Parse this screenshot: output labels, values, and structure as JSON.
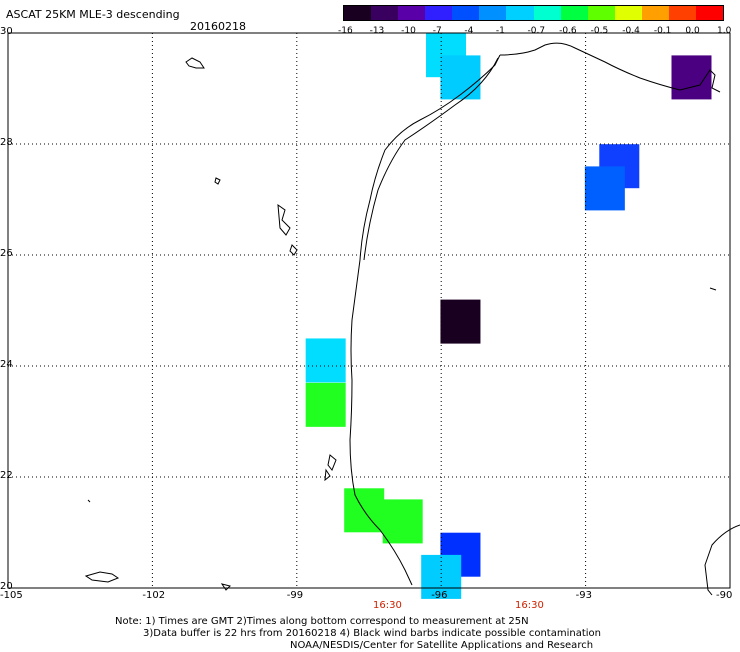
{
  "header": {
    "title": "ASCAT 25KM MLE-3 descending",
    "date": "20160218"
  },
  "colorbar": {
    "labels": [
      "-16",
      "-13",
      "-10",
      "-7",
      "-4",
      "-1",
      "-0.7",
      "-0.6",
      "-0.5",
      "-0.4",
      "-0.1",
      "0.0",
      "1.0"
    ],
    "colors": [
      "#1a0020",
      "#3a0060",
      "#5a00a8",
      "#3020ff",
      "#0050ff",
      "#0090ff",
      "#00d0ff",
      "#00ffd0",
      "#00ff40",
      "#60ff00",
      "#e0ff00",
      "#ffa000",
      "#ff4000",
      "#ff0000"
    ]
  },
  "axes": {
    "lat_labels": [
      "30",
      "28",
      "26",
      "24",
      "22",
      "20"
    ],
    "lon_labels": [
      "-105",
      "-102",
      "-99",
      "-96",
      "-93",
      "-90"
    ]
  },
  "times": [
    "16:30",
    "16:30"
  ],
  "cells": [
    {
      "lon": -95.9,
      "lat": 29.6,
      "color": "#00ddff"
    },
    {
      "lon": -95.6,
      "lat": 29.2,
      "color": "#00ccff"
    },
    {
      "lon": -90.8,
      "lat": 29.2,
      "color": "#4a0080"
    },
    {
      "lon": -92.3,
      "lat": 27.6,
      "color": "#1040ff"
    },
    {
      "lon": -92.6,
      "lat": 27.2,
      "color": "#0060ff"
    },
    {
      "lon": -95.6,
      "lat": 24.8,
      "color": "#1a0020"
    },
    {
      "lon": -98.4,
      "lat": 24.1,
      "color": "#00ddff"
    },
    {
      "lon": -98.4,
      "lat": 23.3,
      "color": "#20ff20"
    },
    {
      "lon": -97.6,
      "lat": 21.4,
      "color": "#20ff20"
    },
    {
      "lon": -96.8,
      "lat": 21.2,
      "color": "#20ff20"
    },
    {
      "lon": -95.6,
      "lat": 20.6,
      "color": "#0030ff"
    },
    {
      "lon": -96.0,
      "lat": 20.2,
      "color": "#00ccff"
    }
  ],
  "notes": {
    "line1": "Note: 1) Times are GMT 2)Times along bottom correspond to measurement at 25N",
    "line2": "3)Data buffer is 22 hrs from 20160218 4) Black wind barbs indicate possible contamination",
    "line3": "NOAA/NESDIS/Center for Satellite Applications and Research"
  }
}
